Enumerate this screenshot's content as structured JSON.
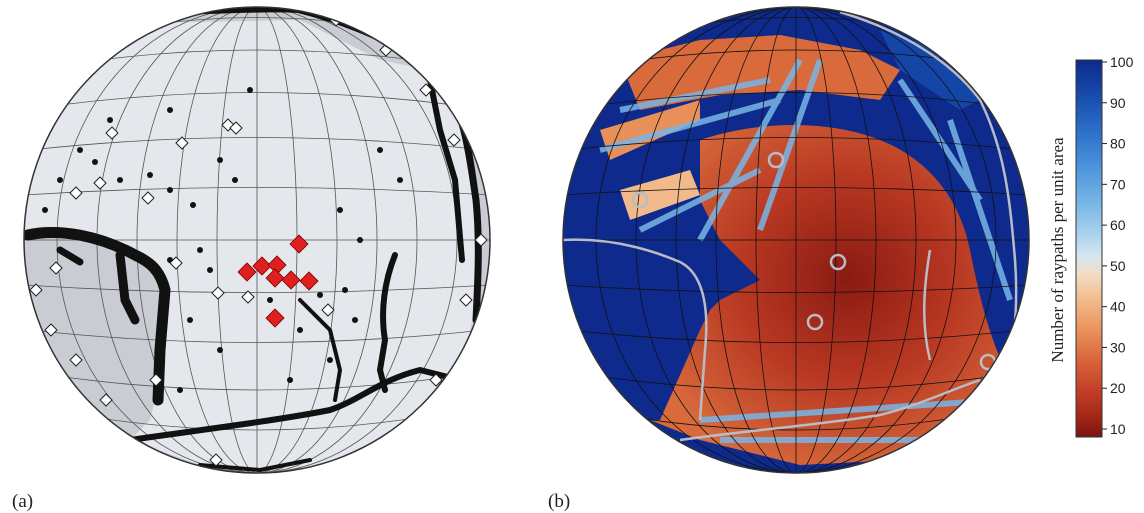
{
  "panels": {
    "a": {
      "label": "(a)"
    },
    "b": {
      "label": "(b)"
    }
  },
  "colorbar": {
    "title": "Number of raypaths per unit area",
    "ticks": [
      "100",
      "90",
      "80",
      "70",
      "60",
      "50",
      "40",
      "30",
      "20",
      "10"
    ],
    "colors": [
      "#0d2a8c",
      "#1446a8",
      "#2a6cc6",
      "#4a92da",
      "#79b6e6",
      "#a9d2ee",
      "#d5e7f1",
      "#f4dcc2",
      "#f2b98a",
      "#e8905a",
      "#d8633a",
      "#c23d26",
      "#a12518",
      "#7a1410"
    ]
  },
  "colors": {
    "ocean_a": "#e4e7ec",
    "land_a": "#c9ccd2",
    "seismic": "#111111",
    "station": "#ffffff",
    "target": "#e02020",
    "deep_ocean_b": "#0d2a8c",
    "hot_b": "#b23020"
  }
}
